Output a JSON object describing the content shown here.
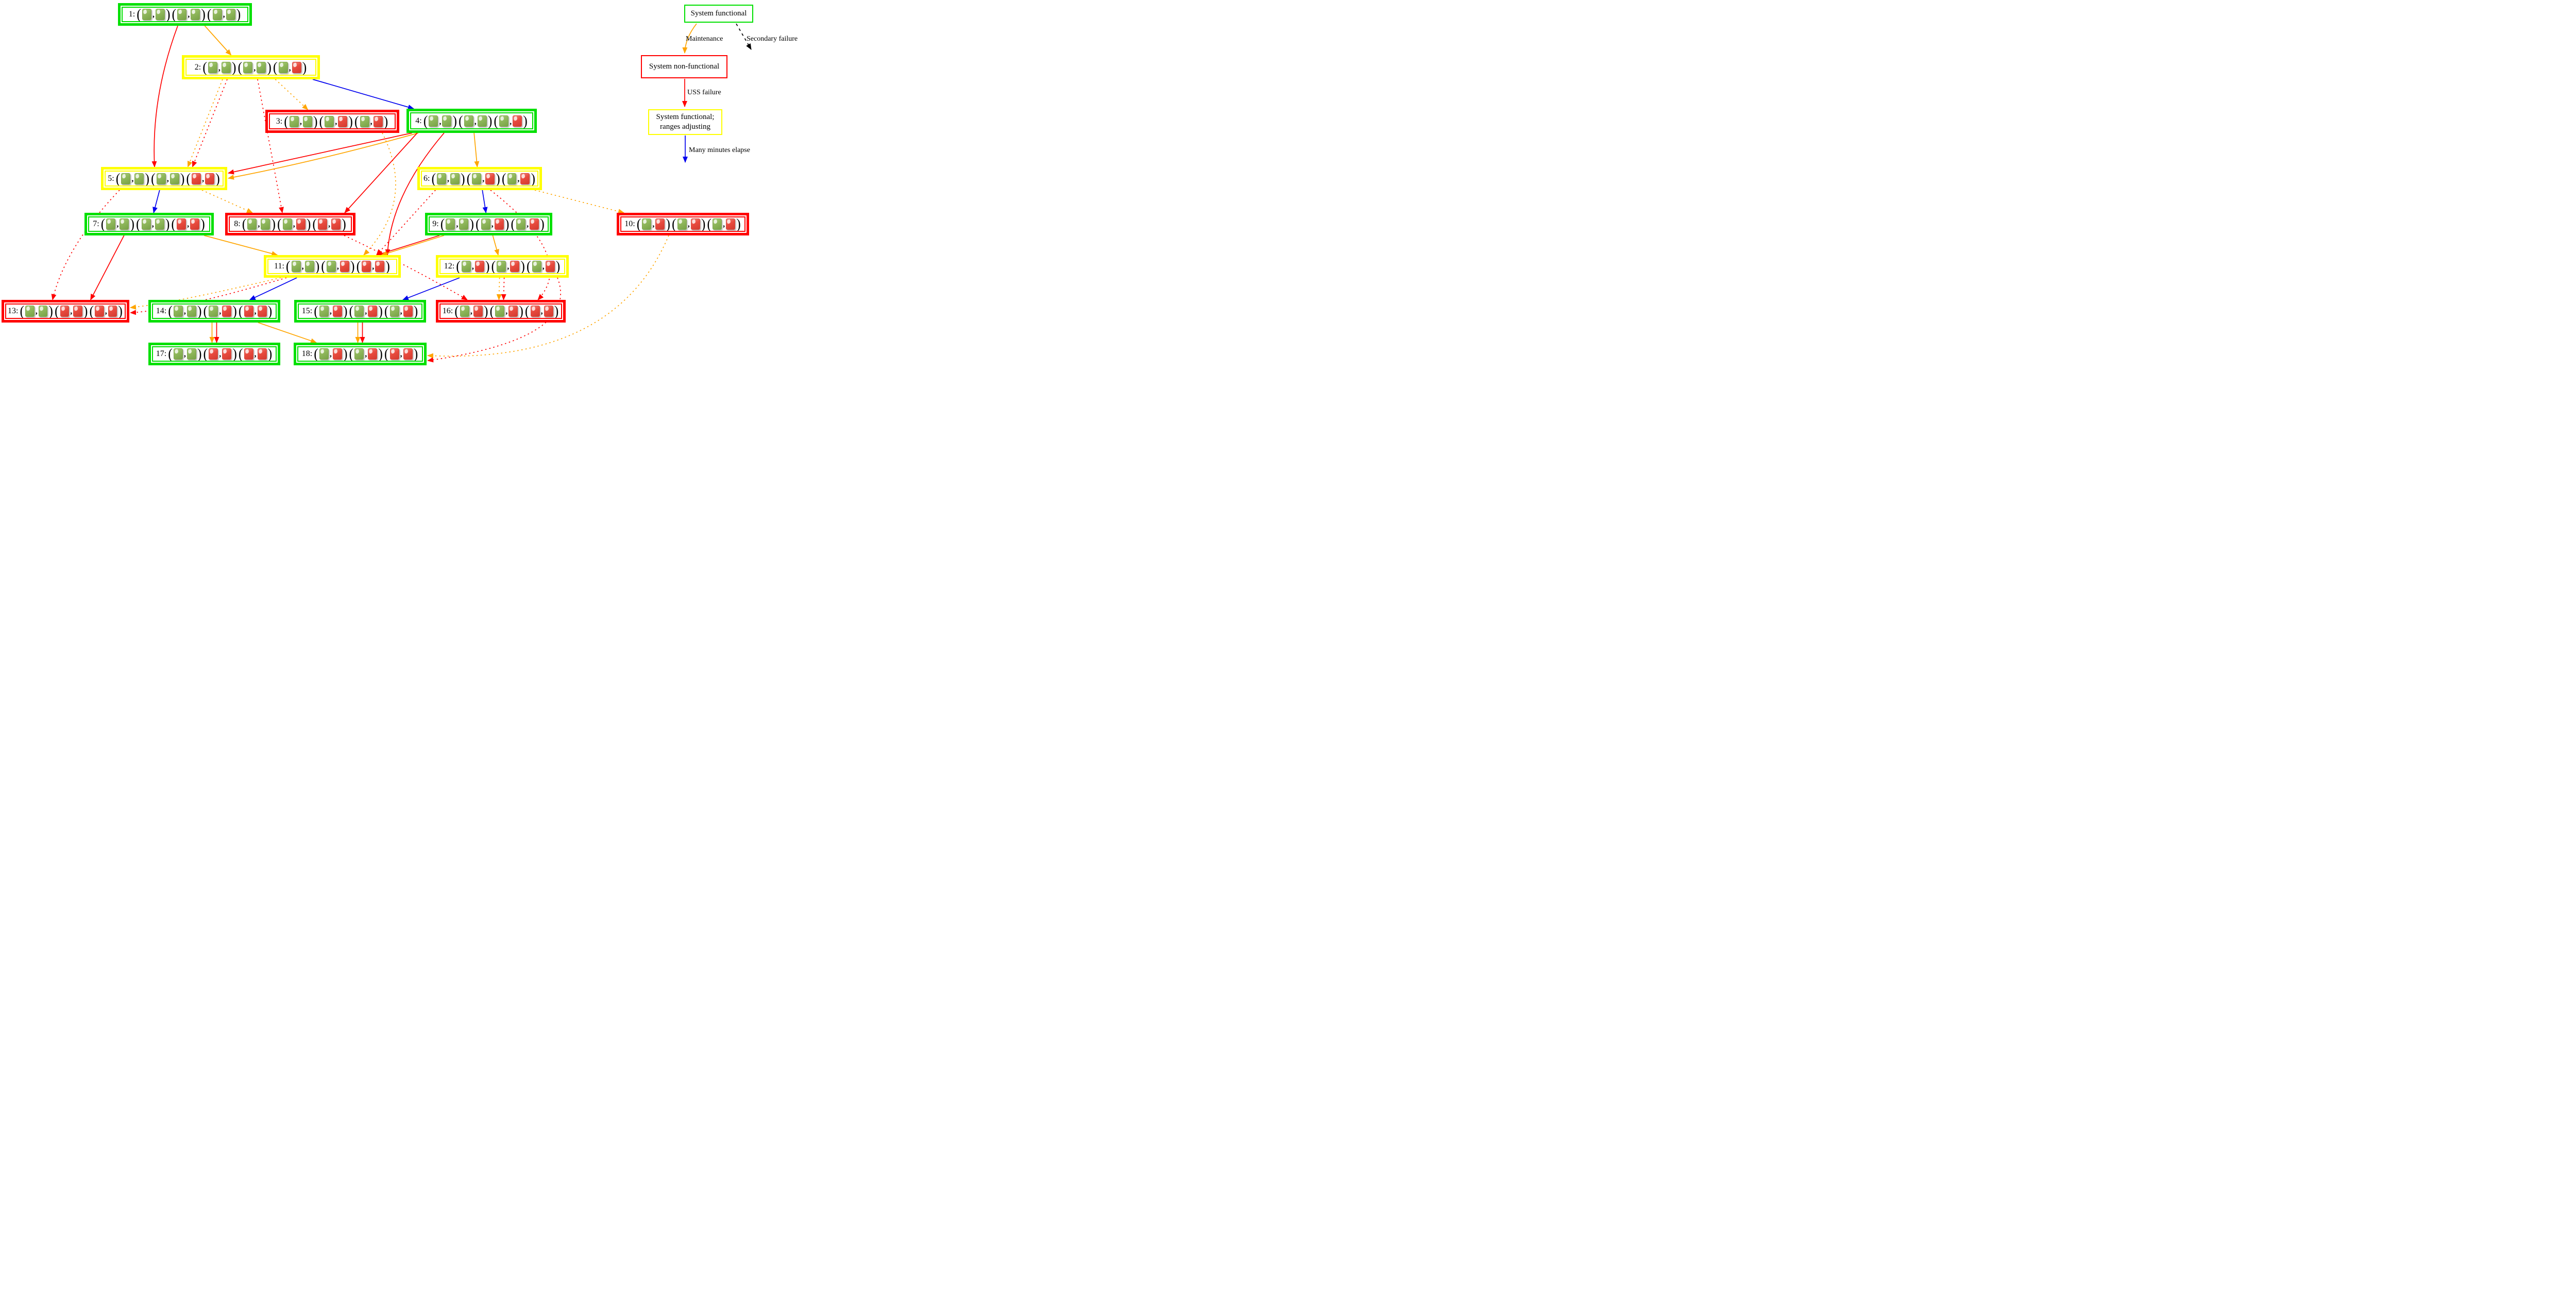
{
  "colors": {
    "green": "#00e000",
    "yellow": "#ffff00",
    "red": "#ff0000",
    "orange": "#ffa500",
    "blue": "#0000ee",
    "black": "#000000",
    "square_green": "#8eb65a",
    "square_red": "#e84a3e"
  },
  "punctuation": {
    "open": "(",
    "comma": ",",
    "close": ")"
  },
  "nodes": [
    {
      "id": 1,
      "label": "1:",
      "border": "green",
      "pairs": [
        [
          "g",
          "g"
        ],
        [
          "g",
          "g"
        ],
        [
          "g",
          "g"
        ]
      ]
    },
    {
      "id": 2,
      "label": "2:",
      "border": "yellow",
      "pairs": [
        [
          "g",
          "g"
        ],
        [
          "g",
          "g"
        ],
        [
          "g",
          "r"
        ]
      ]
    },
    {
      "id": 3,
      "label": "3:",
      "border": "red",
      "pairs": [
        [
          "g",
          "g"
        ],
        [
          "g",
          "r"
        ],
        [
          "g",
          "r"
        ]
      ]
    },
    {
      "id": 4,
      "label": "4:",
      "border": "green",
      "pairs": [
        [
          "g",
          "g"
        ],
        [
          "g",
          "g"
        ],
        [
          "g",
          "r"
        ]
      ]
    },
    {
      "id": 5,
      "label": "5:",
      "border": "yellow",
      "pairs": [
        [
          "g",
          "g"
        ],
        [
          "g",
          "g"
        ],
        [
          "r",
          "r"
        ]
      ]
    },
    {
      "id": 6,
      "label": "6:",
      "border": "yellow",
      "pairs": [
        [
          "g",
          "g"
        ],
        [
          "g",
          "r"
        ],
        [
          "g",
          "r"
        ]
      ]
    },
    {
      "id": 7,
      "label": "7:",
      "border": "green",
      "pairs": [
        [
          "g",
          "g"
        ],
        [
          "g",
          "g"
        ],
        [
          "r",
          "r"
        ]
      ]
    },
    {
      "id": 8,
      "label": "8:",
      "border": "red",
      "pairs": [
        [
          "g",
          "g"
        ],
        [
          "g",
          "r"
        ],
        [
          "r",
          "r"
        ]
      ]
    },
    {
      "id": 9,
      "label": "9:",
      "border": "green",
      "pairs": [
        [
          "g",
          "g"
        ],
        [
          "g",
          "r"
        ],
        [
          "g",
          "r"
        ]
      ]
    },
    {
      "id": 10,
      "label": "10:",
      "border": "red",
      "pairs": [
        [
          "g",
          "r"
        ],
        [
          "g",
          "r"
        ],
        [
          "g",
          "r"
        ]
      ]
    },
    {
      "id": 11,
      "label": "11:",
      "border": "yellow",
      "pairs": [
        [
          "g",
          "g"
        ],
        [
          "g",
          "r"
        ],
        [
          "r",
          "r"
        ]
      ]
    },
    {
      "id": 12,
      "label": "12:",
      "border": "yellow",
      "pairs": [
        [
          "g",
          "r"
        ],
        [
          "g",
          "r"
        ],
        [
          "g",
          "r"
        ]
      ]
    },
    {
      "id": 13,
      "label": "13:",
      "border": "red",
      "pairs": [
        [
          "g",
          "g"
        ],
        [
          "r",
          "r"
        ],
        [
          "r",
          "r"
        ]
      ]
    },
    {
      "id": 14,
      "label": "14:",
      "border": "green",
      "pairs": [
        [
          "g",
          "g"
        ],
        [
          "g",
          "r"
        ],
        [
          "r",
          "r"
        ]
      ]
    },
    {
      "id": 15,
      "label": "15:",
      "border": "green",
      "pairs": [
        [
          "g",
          "r"
        ],
        [
          "g",
          "r"
        ],
        [
          "g",
          "r"
        ]
      ]
    },
    {
      "id": 16,
      "label": "16:",
      "border": "red",
      "pairs": [
        [
          "g",
          "r"
        ],
        [
          "g",
          "r"
        ],
        [
          "r",
          "r"
        ]
      ]
    },
    {
      "id": 17,
      "label": "17:",
      "border": "green",
      "pairs": [
        [
          "g",
          "g"
        ],
        [
          "r",
          "r"
        ],
        [
          "r",
          "r"
        ]
      ]
    },
    {
      "id": 18,
      "label": "18:",
      "border": "green",
      "pairs": [
        [
          "g",
          "r"
        ],
        [
          "g",
          "r"
        ],
        [
          "r",
          "r"
        ]
      ]
    }
  ],
  "edges": [
    {
      "from": 1,
      "to": 2,
      "color": "orange",
      "style": "solid"
    },
    {
      "from": 1,
      "to": 5,
      "color": "red",
      "style": "solid"
    },
    {
      "from": 2,
      "to": 3,
      "color": "orange",
      "style": "dotted"
    },
    {
      "from": 2,
      "to": 4,
      "color": "blue",
      "style": "solid"
    },
    {
      "from": 2,
      "to": 5,
      "color": "orange",
      "style": "dotted"
    },
    {
      "from": 2,
      "to": 5,
      "color": "red",
      "style": "dotted"
    },
    {
      "from": 2,
      "to": 8,
      "color": "red",
      "style": "dotted"
    },
    {
      "from": 3,
      "to": 11,
      "color": "orange",
      "style": "dotted"
    },
    {
      "from": 4,
      "to": 5,
      "color": "red",
      "style": "solid"
    },
    {
      "from": 4,
      "to": 5,
      "color": "orange",
      "style": "solid"
    },
    {
      "from": 4,
      "to": 6,
      "color": "orange",
      "style": "solid"
    },
    {
      "from": 4,
      "to": 8,
      "color": "red",
      "style": "solid"
    },
    {
      "from": 4,
      "to": 11,
      "color": "red",
      "style": "solid"
    },
    {
      "from": 5,
      "to": 7,
      "color": "blue",
      "style": "solid"
    },
    {
      "from": 5,
      "to": 8,
      "color": "orange",
      "style": "dotted"
    },
    {
      "from": 5,
      "to": 13,
      "color": "red",
      "style": "dotted"
    },
    {
      "from": 6,
      "to": 9,
      "color": "blue",
      "style": "solid"
    },
    {
      "from": 6,
      "to": 10,
      "color": "orange",
      "style": "dotted"
    },
    {
      "from": 6,
      "to": 11,
      "color": "red",
      "style": "dotted"
    },
    {
      "from": 6,
      "to": 16,
      "color": "red",
      "style": "dotted"
    },
    {
      "from": 7,
      "to": 11,
      "color": "orange",
      "style": "solid"
    },
    {
      "from": 7,
      "to": 13,
      "color": "red",
      "style": "solid"
    },
    {
      "from": 8,
      "to": 16,
      "color": "red",
      "style": "dotted"
    },
    {
      "from": 9,
      "to": 11,
      "color": "red",
      "style": "solid"
    },
    {
      "from": 9,
      "to": 11,
      "color": "orange",
      "style": "solid"
    },
    {
      "from": 9,
      "to": 12,
      "color": "orange",
      "style": "solid"
    },
    {
      "from": 10,
      "to": 18,
      "color": "orange",
      "style": "dotted"
    },
    {
      "from": 11,
      "to": 13,
      "color": "orange",
      "style": "dotted"
    },
    {
      "from": 11,
      "to": 13,
      "color": "red",
      "style": "dotted"
    },
    {
      "from": 11,
      "to": 14,
      "color": "blue",
      "style": "solid"
    },
    {
      "from": 12,
      "to": 15,
      "color": "blue",
      "style": "solid"
    },
    {
      "from": 12,
      "to": 16,
      "color": "orange",
      "style": "dotted"
    },
    {
      "from": 12,
      "to": 16,
      "color": "red",
      "style": "dotted"
    },
    {
      "from": 12,
      "to": 18,
      "color": "red",
      "style": "dotted"
    },
    {
      "from": 14,
      "to": 17,
      "color": "orange",
      "style": "solid"
    },
    {
      "from": 14,
      "to": 17,
      "color": "red",
      "style": "solid"
    },
    {
      "from": 14,
      "to": 18,
      "color": "orange",
      "style": "solid"
    },
    {
      "from": 15,
      "to": 18,
      "color": "orange",
      "style": "solid"
    },
    {
      "from": 15,
      "to": 18,
      "color": "red",
      "style": "solid"
    }
  ],
  "legend": {
    "nodes": [
      {
        "id": "system-functional",
        "label": "System functional",
        "border": "green"
      },
      {
        "id": "system-non-functional",
        "label": "System non-functional",
        "border": "red"
      },
      {
        "id": "system-functional-ranges-adjusting",
        "lines": [
          "System functional;",
          "ranges adjusting"
        ],
        "border": "yellow"
      }
    ],
    "edge_labels": [
      {
        "id": "maintenance",
        "label": "Maintenance",
        "color": "orange",
        "style": "solid"
      },
      {
        "id": "secondary-failure",
        "label": "Secondary failure",
        "color": "black",
        "style": "dashed"
      },
      {
        "id": "uss-failure",
        "label": "USS failure",
        "color": "red",
        "style": "solid"
      },
      {
        "id": "many-minutes-elapse",
        "label": "Many minutes elapse",
        "color": "blue",
        "style": "solid"
      }
    ]
  }
}
